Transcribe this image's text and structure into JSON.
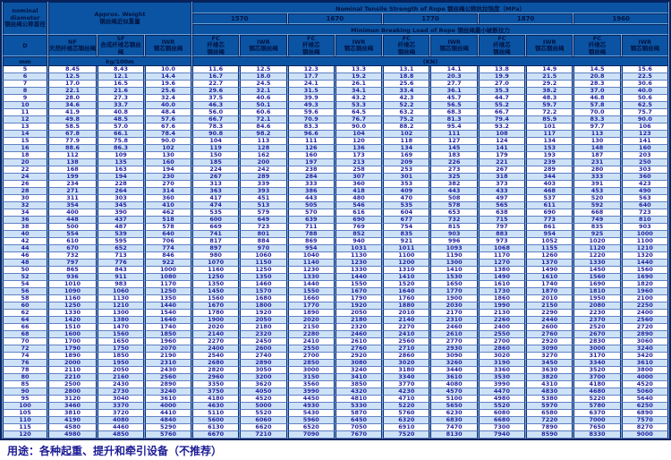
{
  "header": {
    "diameter_en1": "nominal",
    "diameter_en2": "diameter",
    "diameter_zh": "钢丝绳公称直径",
    "weight_en": "Approx. Weight",
    "weight_zh": "钢丝绳近似重量",
    "tensile_title": "Nominal Tensile Strength of Rope 钢丝绳公称抗拉强度（MPa）",
    "strength_grades": [
      "1570",
      "1670",
      "1770",
      "1870",
      "1960"
    ],
    "breaking_title": "Minimun Breaking Load of Rope 钢丝绳最小破断拉力",
    "col_d": "D",
    "col_nf_en": "NF",
    "col_nf_zh": "天然纤维芯钢丝绳",
    "col_sf_en": "SF",
    "col_sf_zh": "合成纤维芯钢丝绳",
    "col_iwr_en": "IWR",
    "col_iwr_zh": "钢芯钢丝绳",
    "col_fc_en": "FC",
    "col_fc_zh1": "纤维芯",
    "col_fc_zh2": "钢丝绳",
    "unit_mm": "mm",
    "unit_kg": "kg/100m",
    "unit_kn": "(KN)"
  },
  "colors": {
    "header_bg": "#0b54a4",
    "header_text": "#021442",
    "grid_dark": "#06225c",
    "row_alt": "#cde2f6",
    "data_text": "#2222a0"
  },
  "rows": [
    [
      "5",
      "8.45",
      "8.43",
      "10.0",
      "11.6",
      "12.5",
      "12.3",
      "13.3",
      "13.1",
      "14.1",
      "13.8",
      "14.9",
      "14.5",
      "15.6"
    ],
    [
      "6",
      "12.5",
      "12.1",
      "14.4",
      "16.7",
      "18.0",
      "17.7",
      "19.2",
      "18.8",
      "20.3",
      "19.9",
      "21.5",
      "20.8",
      "22.5"
    ],
    [
      "7",
      "17.0",
      "16.5",
      "19.6",
      "22.7",
      "24.5",
      "24.1",
      "26.1",
      "25.6",
      "27.7",
      "27.0",
      "29.2",
      "28.3",
      "30.6"
    ],
    [
      "8",
      "22.1",
      "21.6",
      "25.6",
      "29.6",
      "32.1",
      "31.5",
      "34.1",
      "33.4",
      "36.1",
      "35.3",
      "38.2",
      "37.0",
      "40.0"
    ],
    [
      "9",
      "28.0",
      "27.3",
      "32.4",
      "37.5",
      "40.6",
      "39.9",
      "43.2",
      "42.3",
      "45.7",
      "44.7",
      "48.3",
      "46.8",
      "50.6"
    ],
    [
      "10",
      "34.6",
      "33.7",
      "40.0",
      "46.3",
      "50.1",
      "49.3",
      "53.3",
      "52.2",
      "56.5",
      "55.2",
      "59.7",
      "57.8",
      "62.5"
    ],
    [
      "11",
      "41.9",
      "40.8",
      "48.4",
      "56.0",
      "60.6",
      "59.6",
      "64.5",
      "63.2",
      "68.3",
      "66.7",
      "72.2",
      "70.0",
      "75.7"
    ],
    [
      "12",
      "49.8",
      "48.5",
      "57.6",
      "66.7",
      "72.1",
      "70.9",
      "76.7",
      "75.2",
      "81.3",
      "79.4",
      "85.9",
      "83.3",
      "90.0"
    ],
    [
      "13",
      "58.5",
      "57.0",
      "67.6",
      "78.3",
      "84.6",
      "83.3",
      "90.0",
      "88.2",
      "95.4",
      "93.2",
      "101",
      "97.7",
      "106"
    ],
    [
      "14",
      "67.8",
      "66.1",
      "78.4",
      "90.8",
      "98.2",
      "96.6",
      "104",
      "102",
      "111",
      "108",
      "117",
      "113",
      "123"
    ],
    [
      "15",
      "77.9",
      "75.8",
      "90.0",
      "104",
      "113",
      "111",
      "120",
      "118",
      "127",
      "124",
      "134",
      "130",
      "141"
    ],
    [
      "16",
      "88.6",
      "86.3",
      "102",
      "119",
      "128",
      "126",
      "136",
      "134",
      "145",
      "141",
      "153",
      "148",
      "160"
    ],
    [
      "18",
      "112",
      "109",
      "130",
      "150",
      "162",
      "160",
      "173",
      "169",
      "183",
      "179",
      "193",
      "187",
      "203"
    ],
    [
      "20",
      "138",
      "135",
      "160",
      "185",
      "200",
      "197",
      "213",
      "209",
      "226",
      "221",
      "239",
      "231",
      "250"
    ],
    [
      "22",
      "168",
      "163",
      "194",
      "224",
      "242",
      "238",
      "258",
      "253",
      "273",
      "267",
      "289",
      "280",
      "303"
    ],
    [
      "24",
      "199",
      "194",
      "230",
      "267",
      "289",
      "284",
      "307",
      "301",
      "325",
      "318",
      "344",
      "333",
      "360"
    ],
    [
      "26",
      "234",
      "228",
      "270",
      "313",
      "339",
      "333",
      "360",
      "353",
      "382",
      "373",
      "403",
      "391",
      "423"
    ],
    [
      "28",
      "271",
      "264",
      "314",
      "363",
      "393",
      "386",
      "418",
      "409",
      "443",
      "433",
      "468",
      "453",
      "490"
    ],
    [
      "30",
      "311",
      "303",
      "360",
      "417",
      "451",
      "443",
      "480",
      "470",
      "508",
      "497",
      "537",
      "520",
      "563"
    ],
    [
      "32",
      "354",
      "345",
      "410",
      "474",
      "513",
      "505",
      "546",
      "535",
      "578",
      "565",
      "611",
      "592",
      "640"
    ],
    [
      "34",
      "400",
      "390",
      "462",
      "535",
      "579",
      "570",
      "616",
      "604",
      "653",
      "638",
      "690",
      "668",
      "723"
    ],
    [
      "36",
      "448",
      "437",
      "518",
      "600",
      "649",
      "639",
      "690",
      "677",
      "732",
      "715",
      "773",
      "749",
      "810"
    ],
    [
      "38",
      "500",
      "487",
      "578",
      "669",
      "723",
      "711",
      "769",
      "754",
      "815",
      "797",
      "861",
      "835",
      "903"
    ],
    [
      "40",
      "554",
      "539",
      "640",
      "741",
      "801",
      "788",
      "852",
      "835",
      "903",
      "883",
      "954",
      "925",
      "1000"
    ],
    [
      "42",
      "610",
      "595",
      "706",
      "817",
      "884",
      "869",
      "940",
      "921",
      "996",
      "973",
      "1052",
      "1020",
      "1100"
    ],
    [
      "44",
      "670",
      "652",
      "774",
      "897",
      "970",
      "954",
      "1031",
      "1011",
      "1093",
      "1068",
      "1155",
      "1120",
      "1210"
    ],
    [
      "46",
      "732",
      "713",
      "846",
      "980",
      "1060",
      "1040",
      "1130",
      "1100",
      "1190",
      "1170",
      "1260",
      "1220",
      "1320"
    ],
    [
      "48",
      "797",
      "776",
      "922",
      "1070",
      "1150",
      "1140",
      "1230",
      "1200",
      "1300",
      "1270",
      "1370",
      "1330",
      "1440"
    ],
    [
      "50",
      "865",
      "843",
      "1000",
      "1160",
      "1250",
      "1230",
      "1330",
      "1310",
      "1410",
      "1380",
      "1490",
      "1450",
      "1560"
    ],
    [
      "52",
      "936",
      "911",
      "1080",
      "1250",
      "1350",
      "1330",
      "1440",
      "1410",
      "1530",
      "1490",
      "1610",
      "1560",
      "1690"
    ],
    [
      "54",
      "1010",
      "983",
      "1170",
      "1350",
      "1460",
      "1440",
      "1550",
      "1520",
      "1650",
      "1610",
      "1740",
      "1690",
      "1820"
    ],
    [
      "56",
      "1090",
      "1060",
      "1250",
      "1450",
      "1570",
      "1550",
      "1670",
      "1640",
      "1770",
      "1730",
      "1870",
      "1810",
      "1960"
    ],
    [
      "58",
      "1160",
      "1130",
      "1350",
      "1560",
      "1680",
      "1660",
      "1790",
      "1760",
      "1900",
      "1860",
      "2010",
      "1950",
      "2100"
    ],
    [
      "60",
      "1250",
      "1210",
      "1440",
      "1670",
      "1800",
      "1770",
      "1920",
      "1880",
      "2030",
      "1990",
      "2150",
      "2080",
      "2250"
    ],
    [
      "62",
      "1330",
      "1300",
      "1540",
      "1780",
      "1920",
      "1890",
      "2050",
      "2010",
      "2170",
      "2130",
      "2290",
      "2230",
      "2400"
    ],
    [
      "64",
      "1420",
      "1380",
      "1640",
      "1900",
      "2050",
      "2020",
      "2180",
      "2140",
      "2310",
      "2260",
      "2440",
      "2370",
      "2560"
    ],
    [
      "66",
      "1510",
      "1470",
      "1740",
      "2020",
      "2180",
      "2150",
      "2320",
      "2270",
      "2460",
      "2400",
      "2600",
      "2520",
      "2720"
    ],
    [
      "68",
      "1600",
      "1560",
      "1850",
      "2140",
      "2320",
      "2280",
      "2460",
      "2410",
      "2610",
      "2550",
      "2760",
      "2670",
      "2890"
    ],
    [
      "70",
      "1700",
      "1650",
      "1960",
      "2270",
      "2450",
      "2410",
      "2610",
      "2560",
      "2770",
      "2700",
      "2920",
      "2830",
      "3060"
    ],
    [
      "72",
      "1790",
      "1750",
      "2070",
      "2400",
      "2600",
      "2550",
      "2760",
      "2710",
      "2930",
      "2860",
      "3090",
      "3000",
      "3240"
    ],
    [
      "74",
      "1890",
      "1850",
      "2190",
      "2540",
      "2740",
      "2700",
      "2920",
      "2860",
      "3090",
      "3020",
      "3270",
      "3170",
      "3420"
    ],
    [
      "76",
      "2000",
      "1950",
      "2310",
      "2680",
      "2890",
      "2850",
      "3080",
      "3020",
      "3260",
      "3190",
      "3450",
      "3340",
      "3610"
    ],
    [
      "78",
      "2110",
      "2050",
      "2430",
      "2820",
      "3050",
      "3000",
      "3240",
      "3180",
      "3440",
      "3360",
      "3630",
      "3520",
      "3800"
    ],
    [
      "80",
      "2210",
      "2160",
      "2560",
      "2960",
      "3200",
      "3150",
      "3410",
      "3340",
      "3610",
      "3530",
      "3820",
      "3700",
      "4000"
    ],
    [
      "85",
      "2500",
      "2430",
      "2890",
      "3350",
      "3620",
      "3560",
      "3850",
      "3770",
      "4080",
      "3990",
      "4310",
      "4180",
      "4520"
    ],
    [
      "90",
      "2800",
      "2730",
      "3240",
      "3750",
      "4050",
      "3990",
      "4320",
      "4230",
      "4570",
      "4470",
      "4830",
      "4680",
      "5060"
    ],
    [
      "95",
      "3120",
      "3040",
      "3610",
      "4180",
      "4520",
      "4450",
      "4810",
      "4710",
      "5100",
      "4980",
      "5380",
      "5220",
      "5640"
    ],
    [
      "100",
      "3460",
      "3370",
      "4000",
      "4630",
      "5000",
      "4930",
      "5330",
      "5220",
      "5650",
      "5520",
      "5970",
      "5780",
      "6250"
    ],
    [
      "105",
      "3810",
      "3720",
      "4410",
      "5110",
      "5520",
      "5430",
      "5870",
      "5760",
      "6230",
      "6080",
      "6580",
      "6370",
      "6890"
    ],
    [
      "110",
      "4190",
      "4080",
      "4840",
      "5600",
      "6060",
      "5960",
      "6450",
      "6320",
      "6830",
      "6680",
      "7220",
      "7000",
      "7570"
    ],
    [
      "115",
      "4580",
      "4460",
      "5290",
      "6130",
      "6620",
      "6520",
      "7050",
      "6910",
      "7470",
      "7300",
      "7890",
      "7650",
      "8270"
    ],
    [
      "120",
      "4980",
      "4850",
      "5760",
      "6670",
      "7210",
      "7090",
      "7670",
      "7520",
      "8130",
      "7940",
      "8590",
      "8330",
      "9000"
    ]
  ],
  "footer": "用途：各种起重、提升和牵引设备（不推荐）"
}
